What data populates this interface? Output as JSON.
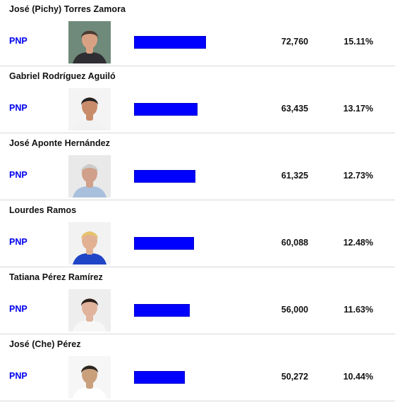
{
  "candidates": [
    {
      "name": "José (Pichy) Torres Zamora",
      "party": "PNP",
      "votes": "72,760",
      "percent": "15.11%",
      "bar_fraction": 0.645,
      "photo": {
        "bg": "#6f8a7a",
        "skin": "#d9a184",
        "hair": "#4a3c33",
        "shirt": "#2f2f33"
      }
    },
    {
      "name": "Gabriel Rodríguez Aguiló",
      "party": "PNP",
      "votes": "63,435",
      "percent": "13.17%",
      "bar_fraction": 0.565,
      "photo": {
        "bg": "#f4f4f4",
        "skin": "#c98c6a",
        "hair": "#222222",
        "shirt": "#f2f2f2"
      }
    },
    {
      "name": "José Aponte Hernández",
      "party": "PNP",
      "votes": "61,325",
      "percent": "12.73%",
      "bar_fraction": 0.548,
      "photo": {
        "bg": "#e9e9e9",
        "skin": "#d0a08a",
        "hair": "#cccccc",
        "shirt": "#a9c0dc"
      }
    },
    {
      "name": "Lourdes Ramos",
      "party": "PNP",
      "votes": "60,088",
      "percent": "12.48%",
      "bar_fraction": 0.535,
      "photo": {
        "bg": "#f2f2f2",
        "skin": "#e2b193",
        "hair": "#e5c46a",
        "shirt": "#1f44c6"
      }
    },
    {
      "name": "Tatiana Pérez Ramírez",
      "party": "PNP",
      "votes": "56,000",
      "percent": "11.63%",
      "bar_fraction": 0.497,
      "photo": {
        "bg": "#eeeeee",
        "skin": "#e1b39c",
        "hair": "#2a1f1b",
        "shirt": "#f7f7f7"
      }
    },
    {
      "name": "José (Che) Pérez",
      "party": "PNP",
      "votes": "50,272",
      "percent": "10.44%",
      "bar_fraction": 0.452,
      "photo": {
        "bg": "#f6f6f6",
        "skin": "#caa07c",
        "hair": "#2b2622",
        "shirt": "#ffffff"
      }
    }
  ],
  "colors": {
    "party": "#0000ee",
    "bar": "#0000ff",
    "divider": "#d8d8d8"
  }
}
